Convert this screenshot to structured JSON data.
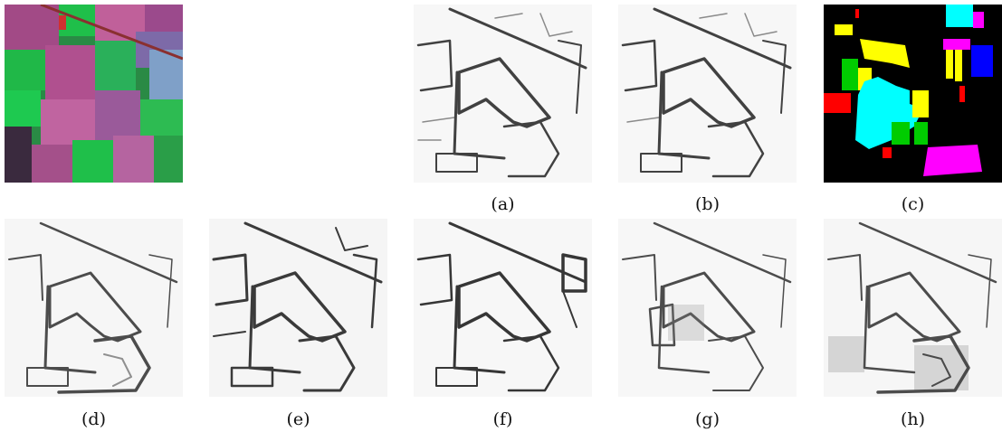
{
  "figure": {
    "panels": [
      {
        "id": "rgb",
        "caption": ""
      },
      {
        "id": "a",
        "caption": "(a)"
      },
      {
        "id": "b",
        "caption": "(b)"
      },
      {
        "id": "c",
        "caption": "(c)"
      },
      {
        "id": "d",
        "caption": "(d)"
      },
      {
        "id": "e",
        "caption": "(e)"
      },
      {
        "id": "f",
        "caption": "(f)"
      },
      {
        "id": "g",
        "caption": "(g)"
      },
      {
        "id": "h",
        "caption": "(h)"
      }
    ]
  },
  "colors": {
    "background": "#ffffff",
    "edge": "#111111",
    "groundtruth_background": "#000000",
    "class_yellow": "#ffff00",
    "class_cyan": "#00ffff",
    "class_magenta": "#ff00ff",
    "class_blue": "#0000ff",
    "class_red": "#ff0000",
    "class_green": "#00cc00",
    "rgb_green": "#1fbf4a",
    "rgb_magenta": "#b0508f",
    "rgb_dark": "#3a2a3e"
  }
}
